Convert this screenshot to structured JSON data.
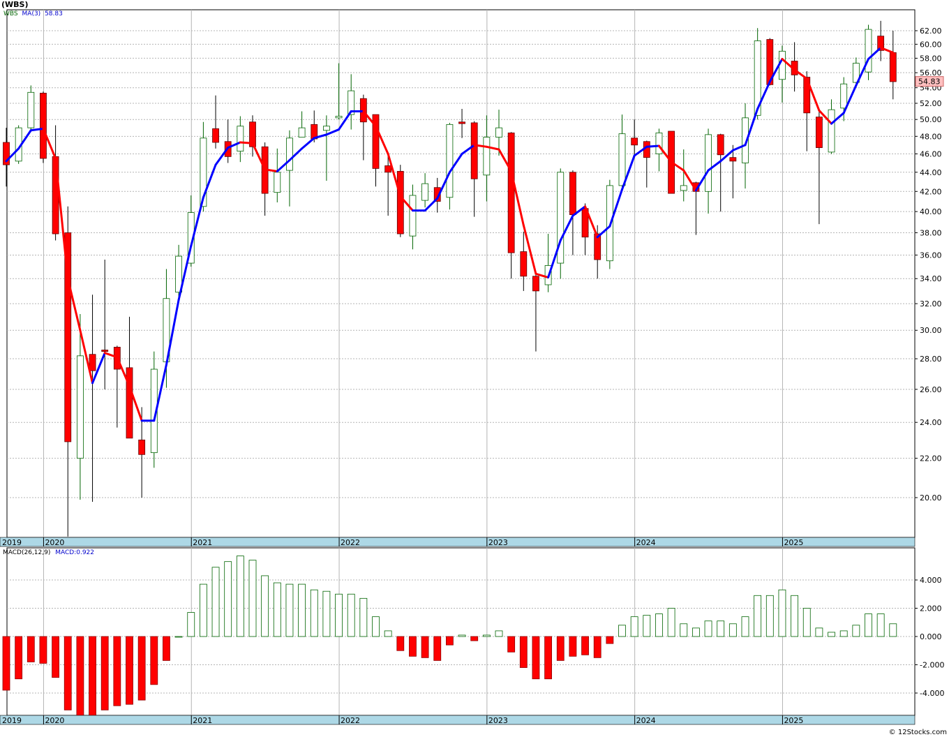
{
  "title": "(WBS)",
  "footer": "© 12Stocks.com",
  "price_legend": {
    "symbol": "WBS",
    "ma_label": "MA(3)",
    "ma_value": "58.83"
  },
  "macd_legend": {
    "label": "MACD(26,12,9)",
    "value_label": "MACD:0.922"
  },
  "last_price_label": "54.83",
  "colors": {
    "up_candle_border": "#006400",
    "down_candle": "#ff0000",
    "ma_up": "#0000ff",
    "ma_down": "#ff0000",
    "grid": "#b4b4b4",
    "axis_band": "#add8e6",
    "last_price_box": "#ffc0c0"
  },
  "chart_data": [
    {
      "type": "candlestick",
      "scale": "log",
      "ylim": [
        18.2,
        64.3
      ],
      "yticks": [
        "62.00",
        "60.00",
        "58.00",
        "56.00",
        "54.00",
        "52.00",
        "50.00",
        "48.00",
        "46.00",
        "44.00",
        "42.00",
        "40.00",
        "38.00",
        "36.00",
        "34.00",
        "32.00",
        "30.00",
        "28.00",
        "26.00",
        "24.00",
        "22.00",
        "20.00"
      ],
      "x_labels": [
        "2019",
        "2020",
        "2021",
        "2022",
        "2023",
        "2024",
        "2025"
      ],
      "grid": true,
      "candles": [
        {
          "date": "2019-11",
          "o": 47.3,
          "h": 49.0,
          "l": 42.5,
          "c": 44.8
        },
        {
          "date": "2019-12",
          "o": 45.2,
          "h": 49.3,
          "l": 44.9,
          "c": 49.0
        },
        {
          "date": "2020-01",
          "o": 49.0,
          "h": 54.3,
          "l": 48.5,
          "c": 53.4
        },
        {
          "date": "2020-02",
          "o": 53.3,
          "h": 53.5,
          "l": 45.0,
          "c": 45.5
        },
        {
          "date": "2020-03",
          "o": 45.7,
          "h": 49.3,
          "l": 37.3,
          "c": 37.9
        },
        {
          "date": "2020-04",
          "o": 38.0,
          "h": 40.5,
          "l": 18.2,
          "c": 22.9
        },
        {
          "date": "2020-05",
          "o": 22.0,
          "h": 31.2,
          "l": 19.9,
          "c": 28.2
        },
        {
          "date": "2020-06",
          "o": 28.3,
          "h": 32.7,
          "l": 19.8,
          "c": 27.2
        },
        {
          "date": "2020-07",
          "o": 28.6,
          "h": 35.6,
          "l": 26.0,
          "c": 28.5
        },
        {
          "date": "2020-08",
          "o": 28.8,
          "h": 28.9,
          "l": 23.7,
          "c": 27.3
        },
        {
          "date": "2020-09",
          "o": 27.4,
          "h": 31.0,
          "l": 23.1,
          "c": 23.1
        },
        {
          "date": "2020-10",
          "o": 23.0,
          "h": 24.9,
          "l": 20.0,
          "c": 22.2
        },
        {
          "date": "2020-11",
          "o": 22.3,
          "h": 28.5,
          "l": 21.5,
          "c": 27.3
        },
        {
          "date": "2020-12",
          "o": 27.8,
          "h": 34.8,
          "l": 26.1,
          "c": 32.4
        },
        {
          "date": "2021-01",
          "o": 32.9,
          "h": 36.9,
          "l": 32.4,
          "c": 35.9
        },
        {
          "date": "2021-02",
          "o": 35.3,
          "h": 41.6,
          "l": 35.0,
          "c": 39.9
        },
        {
          "date": "2021-03",
          "o": 40.5,
          "h": 49.7,
          "l": 40.0,
          "c": 47.8
        },
        {
          "date": "2021-04",
          "o": 48.9,
          "h": 53.0,
          "l": 46.6,
          "c": 47.3
        },
        {
          "date": "2021-05",
          "o": 47.4,
          "h": 50.0,
          "l": 45.0,
          "c": 45.7
        },
        {
          "date": "2021-06",
          "o": 46.3,
          "h": 50.4,
          "l": 45.1,
          "c": 49.2
        },
        {
          "date": "2021-07",
          "o": 49.7,
          "h": 50.5,
          "l": 45.7,
          "c": 46.8
        },
        {
          "date": "2021-08",
          "o": 46.8,
          "h": 47.3,
          "l": 39.6,
          "c": 41.8
        },
        {
          "date": "2021-09",
          "o": 41.9,
          "h": 46.6,
          "l": 40.9,
          "c": 44.0
        },
        {
          "date": "2021-10",
          "o": 44.2,
          "h": 48.7,
          "l": 40.5,
          "c": 47.8
        },
        {
          "date": "2021-11",
          "o": 47.9,
          "h": 51.0,
          "l": 48.0,
          "c": 49.0
        },
        {
          "date": "2021-12",
          "o": 49.4,
          "h": 51.1,
          "l": 47.3,
          "c": 47.7
        },
        {
          "date": "2022-01",
          "o": 48.7,
          "h": 50.5,
          "l": 43.1,
          "c": 49.2
        },
        {
          "date": "2022-02",
          "o": 50.2,
          "h": 57.3,
          "l": 50.0,
          "c": 50.4
        },
        {
          "date": "2022-03",
          "o": 50.6,
          "h": 55.8,
          "l": 48.8,
          "c": 53.6
        },
        {
          "date": "2022-04",
          "o": 52.6,
          "h": 53.1,
          "l": 45.3,
          "c": 49.7
        },
        {
          "date": "2022-05",
          "o": 50.6,
          "h": 50.6,
          "l": 42.5,
          "c": 44.4
        },
        {
          "date": "2022-06",
          "o": 44.7,
          "h": 46.1,
          "l": 39.6,
          "c": 44.0
        },
        {
          "date": "2022-07",
          "o": 44.1,
          "h": 44.8,
          "l": 37.6,
          "c": 37.9
        },
        {
          "date": "2022-08",
          "o": 37.7,
          "h": 42.7,
          "l": 36.5,
          "c": 41.6
        },
        {
          "date": "2022-09",
          "o": 41.1,
          "h": 43.9,
          "l": 40.4,
          "c": 42.8
        },
        {
          "date": "2022-10",
          "o": 42.4,
          "h": 43.4,
          "l": 39.9,
          "c": 41.0
        },
        {
          "date": "2022-11",
          "o": 41.4,
          "h": 49.6,
          "l": 40.2,
          "c": 49.4
        },
        {
          "date": "2022-12",
          "o": 49.7,
          "h": 51.3,
          "l": 47.8,
          "c": 49.5
        },
        {
          "date": "2023-01",
          "o": 49.6,
          "h": 49.8,
          "l": 39.5,
          "c": 43.3
        },
        {
          "date": "2023-02",
          "o": 43.7,
          "h": 50.5,
          "l": 41.0,
          "c": 47.9
        },
        {
          "date": "2023-03",
          "o": 47.9,
          "h": 51.2,
          "l": 45.8,
          "c": 49.0
        },
        {
          "date": "2023-04",
          "o": 48.4,
          "h": 48.5,
          "l": 34.0,
          "c": 36.2
        },
        {
          "date": "2023-05",
          "o": 36.3,
          "h": 38.1,
          "l": 33.0,
          "c": 34.2
        },
        {
          "date": "2023-06",
          "o": 34.2,
          "h": 34.3,
          "l": 28.5,
          "c": 33.0
        },
        {
          "date": "2023-07",
          "o": 33.5,
          "h": 37.9,
          "l": 32.9,
          "c": 35.1
        },
        {
          "date": "2023-08",
          "o": 35.3,
          "h": 44.4,
          "l": 34.0,
          "c": 44.0
        },
        {
          "date": "2023-09",
          "o": 44.0,
          "h": 44.2,
          "l": 36.0,
          "c": 39.7
        },
        {
          "date": "2023-10",
          "o": 40.3,
          "h": 40.8,
          "l": 36.0,
          "c": 37.6
        },
        {
          "date": "2023-11",
          "o": 37.9,
          "h": 38.7,
          "l": 34.0,
          "c": 35.6
        },
        {
          "date": "2023-12",
          "o": 35.5,
          "h": 43.2,
          "l": 34.8,
          "c": 42.6
        },
        {
          "date": "2024-01",
          "o": 42.6,
          "h": 50.6,
          "l": 42.0,
          "c": 48.3
        },
        {
          "date": "2024-02",
          "o": 47.8,
          "h": 50.0,
          "l": 45.8,
          "c": 47.0
        },
        {
          "date": "2024-03",
          "o": 47.4,
          "h": 47.5,
          "l": 42.4,
          "c": 45.6
        },
        {
          "date": "2024-04",
          "o": 46.0,
          "h": 48.9,
          "l": 44.1,
          "c": 48.4
        },
        {
          "date": "2024-05",
          "o": 48.6,
          "h": 48.6,
          "l": 41.8,
          "c": 41.8
        },
        {
          "date": "2024-06",
          "o": 42.1,
          "h": 46.5,
          "l": 41.0,
          "c": 42.6
        },
        {
          "date": "2024-07",
          "o": 42.9,
          "h": 43.0,
          "l": 37.8,
          "c": 42.0
        },
        {
          "date": "2024-08",
          "o": 42.0,
          "h": 48.9,
          "l": 39.8,
          "c": 48.2
        },
        {
          "date": "2024-09",
          "o": 48.2,
          "h": 48.3,
          "l": 40.0,
          "c": 45.9
        },
        {
          "date": "2024-10",
          "o": 45.6,
          "h": 47.0,
          "l": 41.3,
          "c": 45.2
        },
        {
          "date": "2024-11",
          "o": 45.0,
          "h": 52.0,
          "l": 42.3,
          "c": 50.2
        },
        {
          "date": "2024-12",
          "o": 50.5,
          "h": 62.4,
          "l": 50.0,
          "c": 60.5
        },
        {
          "date": "2025-01",
          "o": 60.7,
          "h": 60.9,
          "l": 54.3,
          "c": 54.4
        },
        {
          "date": "2025-02",
          "o": 55.1,
          "h": 59.8,
          "l": 52.1,
          "c": 59.0
        },
        {
          "date": "2025-03",
          "o": 57.6,
          "h": 60.3,
          "l": 53.5,
          "c": 55.7
        },
        {
          "date": "2025-04",
          "o": 55.4,
          "h": 56.2,
          "l": 46.3,
          "c": 50.8
        },
        {
          "date": "2025-05",
          "o": 50.3,
          "h": 51.0,
          "l": 38.8,
          "c": 46.7
        },
        {
          "date": "2025-06",
          "o": 46.2,
          "h": 52.5,
          "l": 46.0,
          "c": 51.2
        },
        {
          "date": "2025-07",
          "o": 51.4,
          "h": 55.4,
          "l": 49.8,
          "c": 54.5
        },
        {
          "date": "2025-08",
          "o": 54.7,
          "h": 58.1,
          "l": 54.0,
          "c": 57.3
        },
        {
          "date": "2025-09",
          "o": 56.1,
          "h": 62.9,
          "l": 55.0,
          "c": 62.2
        },
        {
          "date": "2025-10",
          "o": 61.2,
          "h": 63.5,
          "l": 57.6,
          "c": 59.1
        },
        {
          "date": "2025-11",
          "o": 58.8,
          "h": 62.0,
          "l": 52.5,
          "c": 54.8
        }
      ],
      "ma3": [
        45.2,
        46.6,
        48.7,
        48.9,
        45.5,
        34.0,
        30.0,
        26.4,
        28.4,
        28.1,
        26.2,
        24.1,
        24.1,
        27.6,
        32.3,
        36.8,
        41.4,
        44.8,
        46.7,
        47.3,
        47.2,
        44.3,
        44.1,
        45.3,
        46.6,
        47.8,
        48.2,
        48.8,
        51.0,
        51.0,
        49.2,
        46.0,
        41.5,
        40.1,
        40.1,
        41.3,
        44.0,
        46.0,
        47.0,
        46.8,
        46.5,
        44.1,
        38.7,
        34.4,
        34.1,
        37.3,
        39.6,
        40.5,
        37.6,
        38.6,
        42.2,
        45.8,
        46.8,
        46.9,
        45.1,
        44.2,
        42.1,
        44.2,
        45.2,
        46.4,
        47.0,
        51.3,
        54.8,
        57.9,
        56.4,
        55.2,
        51.1,
        49.5,
        50.8,
        54.3,
        57.9,
        59.5,
        58.8
      ]
    },
    {
      "type": "bar",
      "title": "MACD(26,12,9)",
      "ylim": [
        -5.7,
        5.8
      ],
      "yticks": [
        "4.000",
        "2.000",
        "0.000",
        "-2.000",
        "-4.000"
      ],
      "x_labels": [
        "2019",
        "2020",
        "2021",
        "2022",
        "2023",
        "2024",
        "2025"
      ],
      "values": [
        -3.8,
        -3.0,
        -1.8,
        -1.9,
        -2.9,
        -5.2,
        -5.7,
        -5.6,
        -5.2,
        -4.9,
        -4.8,
        -4.5,
        -3.4,
        -1.7,
        0.0,
        1.7,
        3.7,
        4.9,
        5.3,
        5.7,
        5.4,
        4.3,
        3.8,
        3.7,
        3.7,
        3.3,
        3.2,
        3.0,
        3.0,
        2.7,
        1.4,
        0.4,
        -1.0,
        -1.4,
        -1.5,
        -1.7,
        -0.6,
        0.1,
        -0.3,
        0.1,
        0.4,
        -1.1,
        -2.2,
        -3.0,
        -3.0,
        -1.7,
        -1.4,
        -1.3,
        -1.5,
        -0.5,
        0.8,
        1.4,
        1.5,
        1.6,
        2.0,
        0.9,
        0.6,
        1.1,
        1.1,
        0.9,
        1.4,
        2.9,
        2.9,
        3.3,
        2.9,
        2.0,
        0.6,
        0.3,
        0.4,
        0.8,
        1.6,
        1.6,
        0.9
      ]
    }
  ]
}
